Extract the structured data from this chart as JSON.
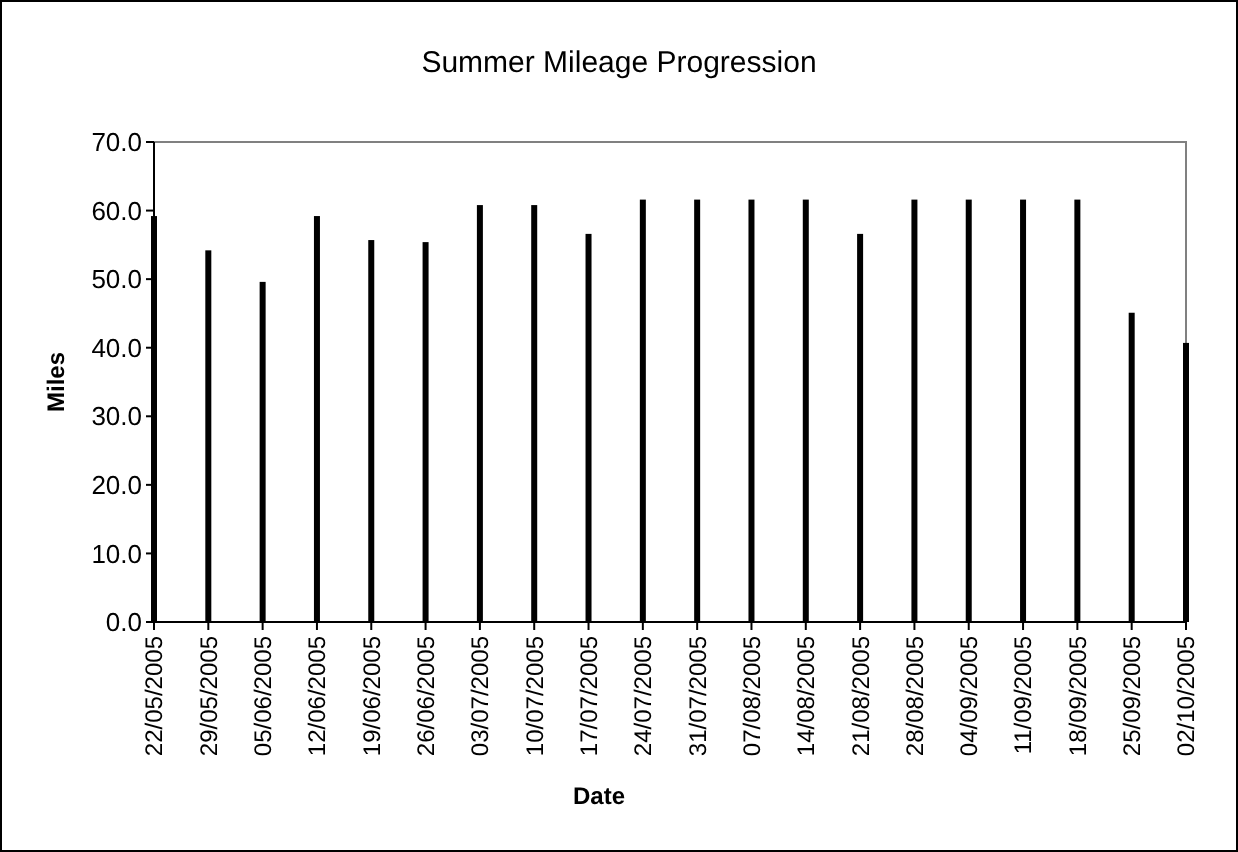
{
  "chart_data": {
    "type": "bar",
    "title": "Summer Mileage Progression",
    "xlabel": "Date",
    "ylabel": "Miles",
    "x": [
      "2005-05-22",
      "2005-05-29",
      "2005-06-05",
      "2005-06-12",
      "2005-06-19",
      "2005-06-26",
      "2005-07-03",
      "2005-07-10",
      "2005-07-17",
      "2005-07-24",
      "2005-07-31",
      "2005-08-07",
      "2005-08-14",
      "2005-08-21",
      "2005-08-28",
      "2005-09-04",
      "2005-09-11",
      "2005-09-18",
      "2005-09-25",
      "2005-10-02"
    ],
    "values": [
      59.2,
      54.2,
      49.6,
      59.2,
      55.7,
      55.4,
      60.8,
      60.8,
      56.6,
      61.6,
      61.6,
      61.6,
      61.6,
      56.6,
      61.6,
      61.6,
      61.6,
      61.6,
      45.1,
      40.7
    ],
    "color": "#000000",
    "xlim": [
      "2005-05-22",
      "2005-10-02"
    ],
    "xticks": [
      {
        "value": "2005-05-22",
        "label": "22/05/2005"
      },
      {
        "value": "2005-05-29",
        "label": "29/05/2005"
      },
      {
        "value": "2005-06-05",
        "label": "05/06/2005"
      },
      {
        "value": "2005-06-12",
        "label": "12/06/2005"
      },
      {
        "value": "2005-06-19",
        "label": "19/06/2005"
      },
      {
        "value": "2005-06-26",
        "label": "26/06/2005"
      },
      {
        "value": "2005-07-03",
        "label": "03/07/2005"
      },
      {
        "value": "2005-07-10",
        "label": "10/07/2005"
      },
      {
        "value": "2005-07-17",
        "label": "17/07/2005"
      },
      {
        "value": "2005-07-24",
        "label": "24/07/2005"
      },
      {
        "value": "2005-07-31",
        "label": "31/07/2005"
      },
      {
        "value": "2005-08-07",
        "label": "07/08/2005"
      },
      {
        "value": "2005-08-14",
        "label": "14/08/2005"
      },
      {
        "value": "2005-08-21",
        "label": "21/08/2005"
      },
      {
        "value": "2005-08-28",
        "label": "28/08/2005"
      },
      {
        "value": "2005-09-04",
        "label": "04/09/2005"
      },
      {
        "value": "2005-09-11",
        "label": "11/09/2005"
      },
      {
        "value": "2005-09-18",
        "label": "18/09/2005"
      },
      {
        "value": "2005-09-25",
        "label": "25/09/2005"
      },
      {
        "value": "2005-10-02",
        "label": "02/10/2005"
      }
    ],
    "ylim": [
      0,
      70
    ],
    "yticks": [
      {
        "value": 0,
        "label": "0.0"
      },
      {
        "value": 10,
        "label": "10.0"
      },
      {
        "value": 20,
        "label": "20.0"
      },
      {
        "value": 30,
        "label": "30.0"
      },
      {
        "value": 40,
        "label": "40.0"
      },
      {
        "value": 50,
        "label": "50.0"
      },
      {
        "value": 60,
        "label": "60.0"
      },
      {
        "value": 70,
        "label": "70.0"
      }
    ],
    "grid": false
  }
}
